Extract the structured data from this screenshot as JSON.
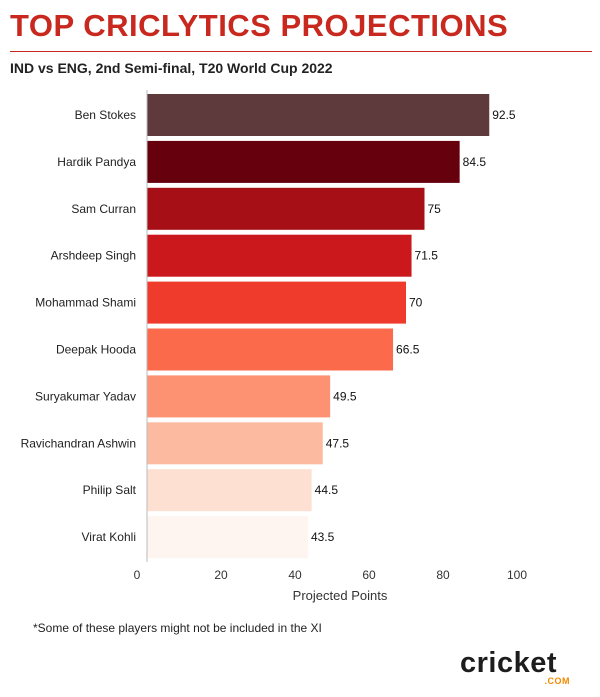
{
  "header": {
    "title": "TOP CRICLYTICS PROJECTIONS",
    "subtitle": "IND vs ENG, 2nd Semi-final, T20 World Cup 2022"
  },
  "footer": {
    "note": "*Some of these players might not be included in the XI",
    "brand": "cricket",
    "brand_sub": ".COM"
  },
  "colors": {
    "title": "#c8281e",
    "bars": [
      "#5e3a3d",
      "#67000d",
      "#a50f15",
      "#cb181d",
      "#ef3b2c",
      "#fb6a4a",
      "#fc9272",
      "#fcbba1",
      "#fee0d2",
      "#fff5f0"
    ]
  },
  "chart_data": {
    "type": "bar",
    "orientation": "horizontal",
    "categories": [
      "Ben Stokes",
      "Hardik Pandya",
      "Sam Curran",
      "Arshdeep Singh",
      "Mohammad Shami",
      "Deepak Hooda",
      "Suryakumar Yadav",
      "Ravichandran Ashwin",
      "Philip Salt",
      "Virat Kohli"
    ],
    "values": [
      92.5,
      84.5,
      75,
      71.5,
      70,
      66.5,
      49.5,
      47.5,
      44.5,
      43.5
    ],
    "data_labels": [
      "92.5",
      "84.5",
      "75",
      "71.5",
      "70",
      "66.5",
      "49.5",
      "47.5",
      "44.5",
      "43.5"
    ],
    "xlabel": "Projected Points",
    "xlim": [
      0,
      100
    ],
    "xticks": [
      0,
      20,
      40,
      60,
      80,
      100
    ],
    "grid": false,
    "legend": "none"
  }
}
